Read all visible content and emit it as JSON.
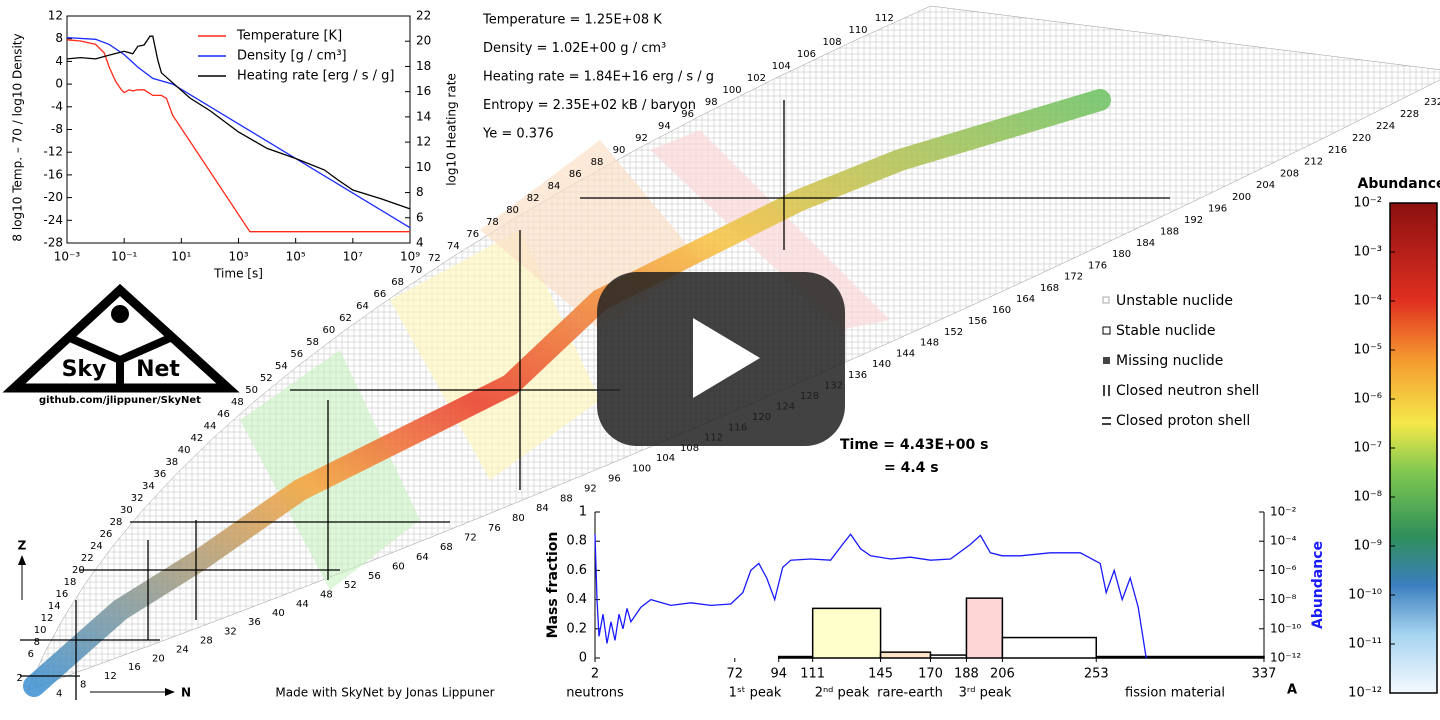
{
  "chart_data": [
    {
      "type": "line",
      "xlabel": "Time [s]",
      "ylabel": "8 log10 Temp. – 70  /  log10 Density",
      "y2label": "log10 Heating rate",
      "xlog": true,
      "xlim": [
        0.001,
        1000000000
      ],
      "ylim": [
        -28,
        12
      ],
      "y2lim": [
        4,
        22
      ],
      "xticks": [
        {
          "value": 0.001,
          "label": "10⁻³"
        },
        {
          "value": 0.1,
          "label": "10⁻¹"
        },
        {
          "value": 10,
          "label": "10¹"
        },
        {
          "value": 1000,
          "label": "10³"
        },
        {
          "value": 100000,
          "label": "10⁵"
        },
        {
          "value": 10000000,
          "label": "10⁷"
        },
        {
          "value": 1000000000,
          "label": "10⁹"
        }
      ],
      "yticks": [
        12,
        8,
        4,
        0,
        -4,
        -8,
        -12,
        -16,
        -20,
        -24,
        -28
      ],
      "y2ticks": [
        22,
        20,
        18,
        16,
        14,
        12,
        10,
        8,
        6,
        4
      ],
      "series": [
        {
          "name": "Temperature [K]",
          "color": "#ff2a1a",
          "x": [
            0.001,
            0.003,
            0.01,
            0.02,
            0.03,
            0.05,
            0.08,
            0.1,
            0.15,
            0.2,
            0.3,
            0.5,
            1,
            2,
            3,
            5,
            2500,
            1000000000
          ],
          "values": [
            7.8,
            7.6,
            7,
            5.5,
            3,
            0.5,
            -1,
            -1.5,
            -1,
            -1.2,
            -1,
            -1,
            -2,
            -2,
            -2.5,
            -5.5,
            -26,
            -26
          ]
        },
        {
          "name": "Density [g / cm³]",
          "color": "#1a2aff",
          "x": [
            0.001,
            0.01,
            0.03,
            0.1,
            0.3,
            1,
            5,
            1000000000
          ],
          "values": [
            8.2,
            7.9,
            7,
            5.2,
            3,
            1,
            0,
            -25.3
          ]
        },
        {
          "name": "Heating rate [erg / s / g]",
          "color": "#000000",
          "axis": "y2",
          "x": [
            0.001,
            0.003,
            0.01,
            0.03,
            0.1,
            0.2,
            0.3,
            0.5,
            0.8,
            1,
            1.5,
            2,
            5,
            20,
            100,
            1000,
            10000,
            100000,
            1000000,
            3000000,
            10000000,
            100000000,
            1000000000
          ],
          "values": [
            18.6,
            18.7,
            18.6,
            18.9,
            19.2,
            19.0,
            19.6,
            19.7,
            20.4,
            20.4,
            18.5,
            17.5,
            16.7,
            15.5,
            14.5,
            12.8,
            11.5,
            10.7,
            9.8,
            9.0,
            8.2,
            7.5,
            6.7
          ]
        }
      ]
    },
    {
      "type": "histogram",
      "xlabel": "A",
      "ylabel": "Mass fraction",
      "y2label": "Abundance",
      "bins": [
        2,
        72,
        94,
        111,
        145,
        170,
        188,
        206,
        253,
        337
      ],
      "values": [
        0.0,
        0.0,
        0.01,
        0.34,
        0.04,
        0.02,
        0.41,
        0.14,
        0.01
      ],
      "colors": [
        "#ffffff",
        "#ffffff",
        "#ffffff",
        "#ffffcc",
        "#fde3c8",
        "#ffffff",
        "#ffd6d6",
        "#ffffff",
        "#ffffff"
      ],
      "xlim": [
        2,
        337
      ],
      "xticks": [
        2,
        72,
        94,
        111,
        145,
        170,
        188,
        206,
        253,
        337
      ],
      "ylim": [
        0,
        1
      ],
      "yticks": [
        0,
        0.2,
        0.4,
        0.6,
        0.8,
        1
      ],
      "y2log": true,
      "y2lim": [
        1e-12,
        0.01
      ],
      "y2ticks": [
        {
          "value": 0.01,
          "label": "10⁻²"
        },
        {
          "value": 0.0001,
          "label": "10⁻⁴"
        },
        {
          "value": 1e-06,
          "label": "10⁻⁶"
        },
        {
          "value": 1e-08,
          "label": "10⁻⁸"
        },
        {
          "value": 1e-10,
          "label": "10⁻¹⁰"
        },
        {
          "value": 1e-12,
          "label": "10⁻¹²"
        }
      ],
      "annotations": [
        "neutrons",
        "1ˢᵗ peak",
        "2ⁿᵈ peak",
        "rare-earth",
        "3ʳᵈ peak",
        "fission material"
      ],
      "series": [
        {
          "name": "Abundance",
          "color": "#1a1aff",
          "axis": "y2",
          "x": [
            2,
            3,
            4,
            6,
            8,
            10,
            12,
            14,
            16,
            18,
            20,
            25,
            30,
            40,
            50,
            60,
            70,
            76,
            80,
            84,
            88,
            92,
            96,
            100,
            110,
            120,
            126,
            130,
            135,
            140,
            150,
            160,
            170,
            180,
            190,
            195,
            200,
            206,
            215,
            230,
            245,
            255,
            258,
            262,
            266,
            270,
            274,
            278
          ],
          "values": [
            0.0003,
            1e-08,
            3e-11,
            1e-09,
            1e-11,
            3e-10,
            1.6e-11,
            1e-09,
            1e-10,
            2.5e-09,
            3e-10,
            3e-09,
            1e-08,
            4e-09,
            6e-09,
            4e-09,
            5e-09,
            3e-08,
            1e-06,
            3e-06,
            3e-07,
            1e-08,
            1.6e-06,
            5e-06,
            6e-06,
            5e-06,
            6e-05,
            0.0003,
            3e-05,
            1e-05,
            6e-06,
            8e-06,
            5e-06,
            6e-06,
            6e-05,
            0.00025,
            1.6e-05,
            1e-05,
            1e-05,
            1.6e-05,
            1.6e-05,
            3e-06,
            3e-08,
            1e-06,
            1e-08,
            3e-07,
            3e-09,
            1e-12
          ]
        }
      ]
    },
    {
      "type": "colorbar",
      "title": "Abundance",
      "ylog": true,
      "ylim": [
        1e-12,
        0.01
      ],
      "yticks": [
        {
          "value": 0.01,
          "label": "10⁻²"
        },
        {
          "value": 0.001,
          "label": "10⁻³"
        },
        {
          "value": 0.0001,
          "label": "10⁻⁴"
        },
        {
          "value": 1e-05,
          "label": "10⁻⁵"
        },
        {
          "value": 1e-06,
          "label": "10⁻⁶"
        },
        {
          "value": 1e-07,
          "label": "10⁻⁷"
        },
        {
          "value": 1e-08,
          "label": "10⁻⁸"
        },
        {
          "value": 1e-09,
          "label": "10⁻⁹"
        },
        {
          "value": 1e-10,
          "label": "10⁻¹⁰"
        },
        {
          "value": 1e-11,
          "label": "10⁻¹¹"
        },
        {
          "value": 1e-12,
          "label": "10⁻¹²"
        }
      ]
    }
  ],
  "info": [
    "Temperature = 1.25E+08 K",
    "Density = 1.02E+00 g / cm³",
    "Heating rate = 1.84E+16 erg / s / g",
    "Entropy = 2.35E+02 kB / baryon",
    "Ye = 0.376"
  ],
  "time": [
    "Time = 4.43E+00 s",
    "= 4.4 s"
  ],
  "nuclide_chart": {
    "z_axis": "Z",
    "n_axis": "N",
    "z_labels": [
      2,
      6,
      8,
      10,
      12,
      14,
      16,
      18,
      20,
      22,
      24,
      26,
      28,
      30,
      32,
      34,
      36,
      38,
      40,
      42,
      44,
      46,
      48,
      50,
      52,
      54,
      56,
      58,
      60,
      62,
      64,
      66,
      68,
      70,
      72,
      74,
      76,
      78,
      80,
      82,
      84,
      86,
      88,
      90,
      92,
      94,
      96,
      98,
      100,
      102,
      104,
      106,
      108,
      110,
      112
    ],
    "n_labels": [
      4,
      8,
      12,
      16,
      20,
      24,
      28,
      32,
      36,
      40,
      44,
      48,
      52,
      56,
      60,
      64,
      68,
      72,
      76,
      80,
      84,
      88,
      92,
      96,
      100,
      104,
      108,
      112,
      116,
      120,
      124,
      128,
      132,
      136,
      140,
      144,
      148,
      152,
      156,
      160,
      164,
      168,
      172,
      176,
      180,
      184,
      188,
      192,
      196,
      200,
      204,
      208,
      212,
      216,
      220,
      224,
      228,
      232
    ],
    "legend": [
      "Unstable nuclide",
      "Stable nuclide",
      "Missing nuclide",
      "Closed neutron shell",
      "Closed proton shell"
    ]
  },
  "logo": {
    "left": "Sky",
    "right": "Net",
    "url": "github.com/jlippuner/SkyNet"
  },
  "credit": "Made with SkyNet by Jonas Lippuner"
}
